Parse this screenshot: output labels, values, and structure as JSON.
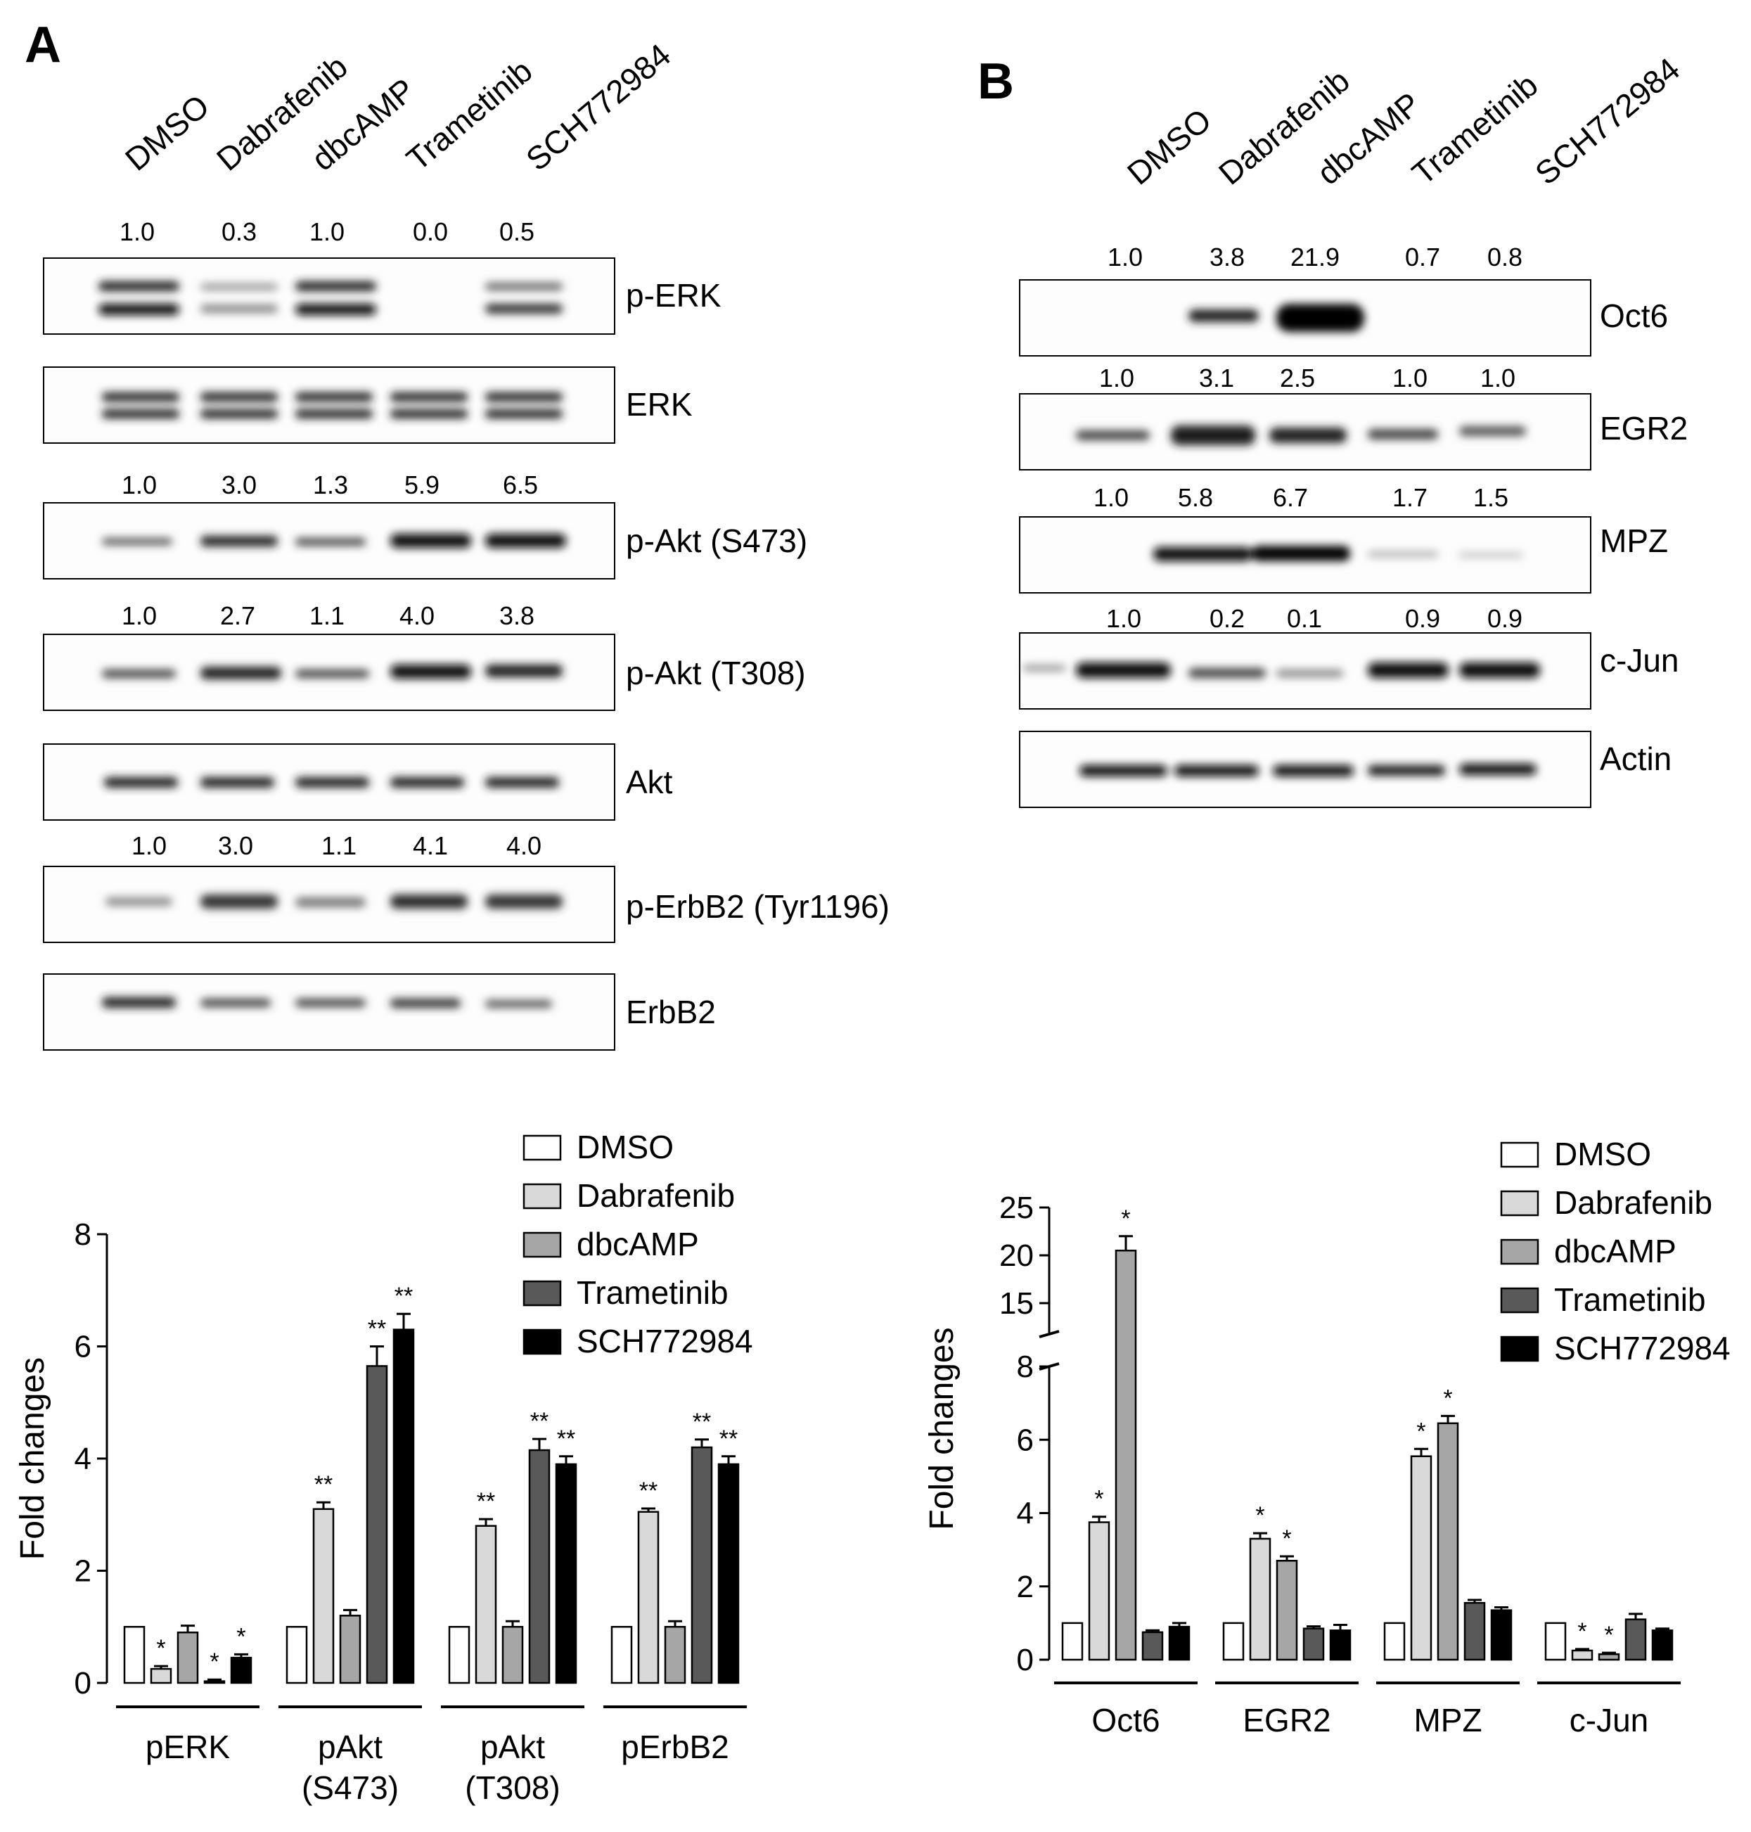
{
  "panel_a": {
    "letter": "A",
    "lanes": [
      "DMSO",
      "Dabrafenib",
      "dbcAMP",
      "Trametinib",
      "SCH772984"
    ],
    "blots": [
      {
        "label": "p-ERK",
        "quant": [
          "1.0",
          "0.3",
          "1.0",
          "0.0",
          "0.5"
        ]
      },
      {
        "label": "ERK",
        "quant": []
      },
      {
        "label": "p-Akt (S473)",
        "quant": [
          "1.0",
          "3.0",
          "1.3",
          "5.9",
          "6.5"
        ]
      },
      {
        "label": "p-Akt (T308)",
        "quant": [
          "1.0",
          "2.7",
          "1.1",
          "4.0",
          "3.8"
        ]
      },
      {
        "label": "Akt",
        "quant": []
      },
      {
        "label": "p-ErbB2 (Tyr1196)",
        "quant": [
          "1.0",
          "3.0",
          "1.1",
          "4.1",
          "4.0"
        ]
      },
      {
        "label": "ErbB2",
        "quant": []
      }
    ]
  },
  "panel_b": {
    "letter": "B",
    "lanes": [
      "DMSO",
      "Dabrafenib",
      "dbcAMP",
      "Trametinib",
      "SCH772984"
    ],
    "blots": [
      {
        "label": "Oct6",
        "quant": [
          "1.0",
          "3.8",
          "21.9",
          "0.7",
          "0.8"
        ]
      },
      {
        "label": "EGR2",
        "quant": [
          "1.0",
          "3.1",
          "2.5",
          "1.0",
          "1.0"
        ]
      },
      {
        "label": "MPZ",
        "quant": [
          "1.0",
          "5.8",
          "6.7",
          "1.7",
          "1.5"
        ]
      },
      {
        "label": "c-Jun",
        "quant": [
          "1.0",
          "0.2",
          "0.1",
          "0.9",
          "0.9"
        ]
      },
      {
        "label": "Actin",
        "quant": []
      }
    ]
  },
  "series_colors": [
    "#ffffff",
    "#d9d9d9",
    "#a6a6a6",
    "#595959",
    "#000000"
  ],
  "chart_data": [
    {
      "type": "bar",
      "ylabel": "Fold changes",
      "ylim": [
        0,
        8
      ],
      "yticks": [
        0,
        2,
        4,
        6,
        8
      ],
      "categories": [
        "pERK",
        "pAkt\n(S473)",
        "pAkt\n(T308)",
        "pErbB2"
      ],
      "legend_position": "top-right",
      "series": [
        {
          "name": "DMSO",
          "values": [
            1.0,
            1.0,
            1.0,
            1.0
          ],
          "errors": [
            0,
            0,
            0,
            0
          ],
          "sig": [
            "",
            "",
            "",
            ""
          ]
        },
        {
          "name": "Dabrafenib",
          "values": [
            0.25,
            3.1,
            2.8,
            3.05
          ],
          "errors": [
            0.05,
            0.12,
            0.12,
            0.06
          ],
          "sig": [
            "*",
            "**",
            "**",
            "**"
          ]
        },
        {
          "name": "dbcAMP",
          "values": [
            0.9,
            1.2,
            1.0,
            1.0
          ],
          "errors": [
            0.12,
            0.1,
            0.1,
            0.1
          ],
          "sig": [
            "",
            "",
            "",
            ""
          ]
        },
        {
          "name": "Trametinib",
          "values": [
            0.03,
            5.65,
            4.15,
            4.2
          ],
          "errors": [
            0.03,
            0.35,
            0.2,
            0.14
          ],
          "sig": [
            "*",
            "**",
            "**",
            "**"
          ]
        },
        {
          "name": "SCH772984",
          "values": [
            0.45,
            6.3,
            3.9,
            3.9
          ],
          "errors": [
            0.06,
            0.28,
            0.14,
            0.14
          ],
          "sig": [
            "*",
            "**",
            "**",
            "**"
          ]
        }
      ]
    },
    {
      "type": "bar",
      "ylabel": "Fold changes",
      "ylim": [
        0,
        25
      ],
      "axis_break": [
        8,
        13
      ],
      "yticks": [
        0,
        2,
        4,
        6,
        8,
        15,
        20,
        25
      ],
      "categories": [
        "Oct6",
        "EGR2",
        "MPZ",
        "c-Jun"
      ],
      "legend_position": "top-right",
      "series": [
        {
          "name": "DMSO",
          "values": [
            1.0,
            1.0,
            1.0,
            1.0
          ],
          "errors": [
            0,
            0,
            0,
            0
          ],
          "sig": [
            "",
            "",
            "",
            ""
          ]
        },
        {
          "name": "Dabrafenib",
          "values": [
            3.75,
            3.3,
            5.55,
            0.25
          ],
          "errors": [
            0.15,
            0.15,
            0.2,
            0.04
          ],
          "sig": [
            "*",
            "*",
            "*",
            "*"
          ]
        },
        {
          "name": "dbcAMP",
          "values": [
            20.5,
            2.7,
            6.45,
            0.15
          ],
          "errors": [
            1.5,
            0.12,
            0.2,
            0.04
          ],
          "sig": [
            "*",
            "*",
            "*",
            "*"
          ]
        },
        {
          "name": "Trametinib",
          "values": [
            0.75,
            0.85,
            1.55,
            1.1
          ],
          "errors": [
            0.05,
            0.06,
            0.08,
            0.15
          ],
          "sig": [
            "",
            "",
            "",
            ""
          ]
        },
        {
          "name": "SCH772984",
          "values": [
            0.9,
            0.8,
            1.35,
            0.8
          ],
          "errors": [
            0.1,
            0.15,
            0.08,
            0.05
          ],
          "sig": [
            "",
            "",
            "",
            ""
          ]
        }
      ]
    }
  ]
}
